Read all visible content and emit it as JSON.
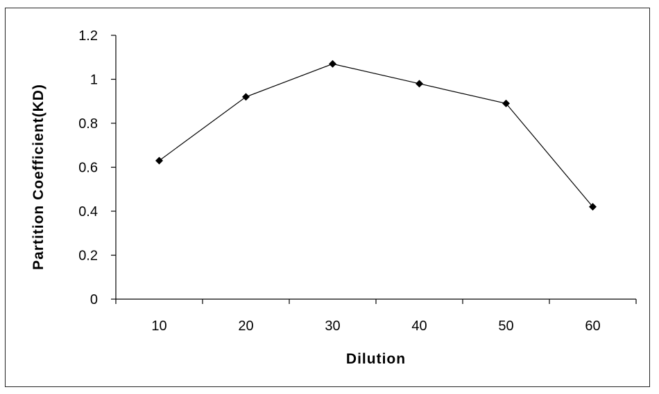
{
  "chart_data": {
    "type": "line",
    "title": "",
    "xlabel": "Dilution",
    "ylabel": "Partition Coefficient(KD)",
    "categories": [
      "10",
      "20",
      "30",
      "40",
      "50",
      "60"
    ],
    "series": [
      {
        "values": [
          0.63,
          0.92,
          1.07,
          0.98,
          0.89,
          0.42
        ]
      }
    ],
    "ylim": [
      0,
      1.2
    ],
    "yticks": [
      "0",
      "0.2",
      "0.4",
      "0.6",
      "0.8",
      "1",
      "1.2"
    ],
    "grid": false,
    "legend": "none",
    "colors": {
      "line": "#000000",
      "marker": "#000000"
    }
  }
}
